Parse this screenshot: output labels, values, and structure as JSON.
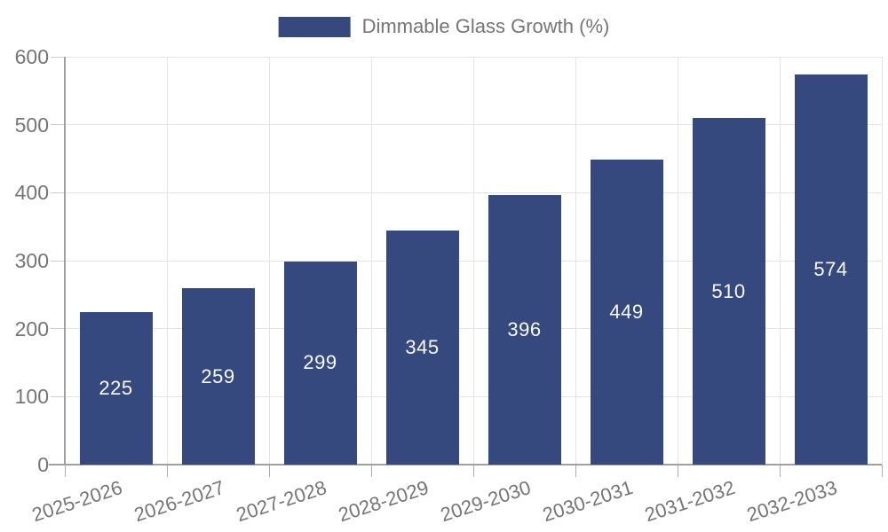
{
  "legend": {
    "label": "Dimmable Glass Growth (%)",
    "swatch_color": "#36497e"
  },
  "chart_data": {
    "type": "bar",
    "title": "",
    "categories": [
      "2025-2026",
      "2026-2027",
      "2027-2028",
      "2028-2029",
      "2029-2030",
      "2030-2031",
      "2031-2032",
      "2032-2033"
    ],
    "series": [
      {
        "name": "Dimmable Glass Growth (%)",
        "values": [
          225,
          259,
          299,
          345,
          396,
          449,
          510,
          574
        ]
      }
    ],
    "value_labels": [
      "225",
      "259",
      "299",
      "345",
      "396",
      "449",
      "510",
      "574"
    ],
    "xlabel": "",
    "ylabel": "",
    "ylim": [
      0,
      600
    ],
    "yticks": [
      0,
      100,
      200,
      300,
      400,
      500,
      600
    ],
    "grid": true,
    "legend_position": "top-center",
    "bar_color": "#36497e",
    "value_label_color": "#fafafa",
    "axis_label_color": "#757575",
    "grid_color": "#e4e4e4",
    "x_label_rotation_deg": -18
  }
}
